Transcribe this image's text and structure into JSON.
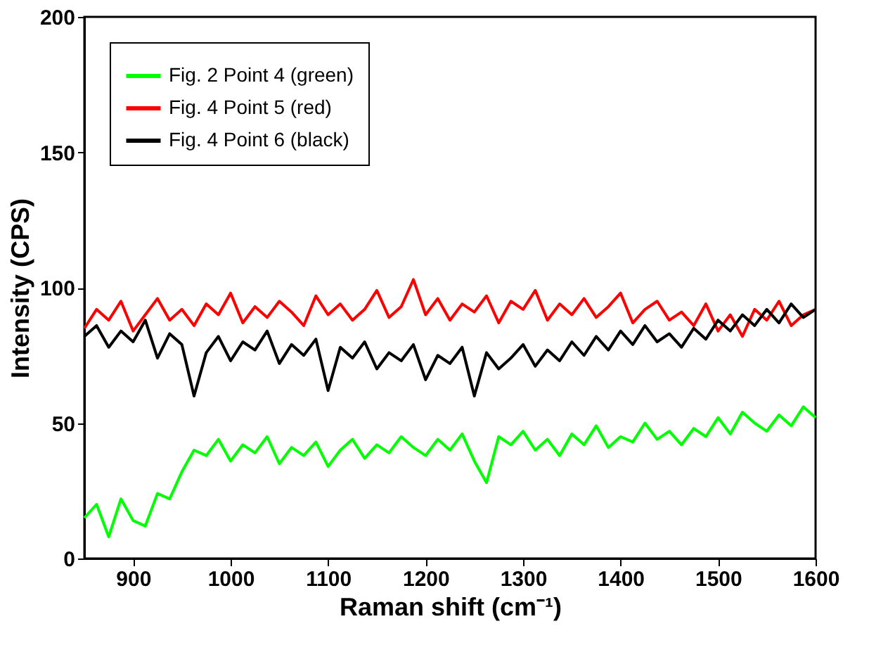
{
  "chart_data": {
    "type": "line",
    "xlabel": "Raman shift (cm⁻¹)",
    "ylabel": "Intensity (CPS)",
    "x": [
      850,
      862.5,
      875,
      887.5,
      900,
      912.5,
      925,
      937.5,
      950,
      962.5,
      975,
      987.5,
      1000,
      1012.5,
      1025,
      1037.5,
      1050,
      1062.5,
      1075,
      1087.5,
      1100,
      1112.5,
      1125,
      1137.5,
      1150,
      1162.5,
      1175,
      1187.5,
      1200,
      1212.5,
      1225,
      1237.5,
      1250,
      1262.5,
      1275,
      1287.5,
      1300,
      1312.5,
      1325,
      1337.5,
      1350,
      1362.5,
      1375,
      1387.5,
      1400,
      1412.5,
      1425,
      1437.5,
      1450,
      1462.5,
      1475,
      1487.5,
      1500,
      1512.5,
      1525,
      1537.5,
      1550,
      1562.5,
      1575,
      1587.5,
      1600
    ],
    "series": [
      {
        "name": "Fig. 2 Point 4 (green)",
        "color": "#00ff00",
        "values": [
          15,
          20,
          8,
          22,
          14,
          12,
          24,
          22,
          32,
          40,
          38,
          44,
          36,
          42,
          39,
          45,
          35,
          41,
          38,
          43,
          34,
          40,
          44,
          37,
          42,
          39,
          45,
          41,
          38,
          44,
          40,
          46,
          36,
          28,
          45,
          42,
          47,
          40,
          44,
          38,
          46,
          42,
          49,
          41,
          45,
          43,
          50,
          44,
          47,
          42,
          48,
          45,
          52,
          46,
          54,
          50,
          47,
          53,
          49,
          56,
          52
        ]
      },
      {
        "name": "Fig. 4 Point 5 (red)",
        "color": "#ff0000",
        "values": [
          85,
          92,
          88,
          95,
          84,
          90,
          96,
          88,
          92,
          86,
          94,
          90,
          98,
          87,
          93,
          89,
          95,
          91,
          86,
          97,
          90,
          94,
          88,
          92,
          99,
          89,
          93,
          103,
          90,
          96,
          88,
          94,
          91,
          97,
          87,
          95,
          92,
          99,
          88,
          94,
          90,
          96,
          89,
          93,
          98,
          87,
          92,
          95,
          88,
          91,
          86,
          94,
          84,
          90,
          82,
          92,
          88,
          95,
          86,
          90,
          92
        ]
      },
      {
        "name": "Fig. 4 Point 6 (black)",
        "color": "#000000",
        "values": [
          82,
          86,
          78,
          84,
          80,
          88,
          74,
          83,
          79,
          60,
          76,
          82,
          73,
          80,
          77,
          84,
          72,
          79,
          75,
          81,
          62,
          78,
          74,
          80,
          70,
          76,
          73,
          79,
          66,
          75,
          72,
          78,
          60,
          76,
          70,
          74,
          79,
          71,
          77,
          73,
          80,
          75,
          82,
          77,
          84,
          79,
          86,
          80,
          83,
          78,
          85,
          81,
          88,
          84,
          90,
          86,
          92,
          87,
          94,
          89,
          92
        ]
      }
    ],
    "xlim": [
      850,
      1600
    ],
    "xticks": [
      900,
      1000,
      1100,
      1200,
      1300,
      1400,
      1500,
      1600
    ],
    "ylim": [
      0,
      200
    ],
    "yticks": [
      0,
      50,
      100,
      150,
      200
    ],
    "grid": false,
    "legend": "top left",
    "line_style": "solid",
    "marker": "none"
  }
}
